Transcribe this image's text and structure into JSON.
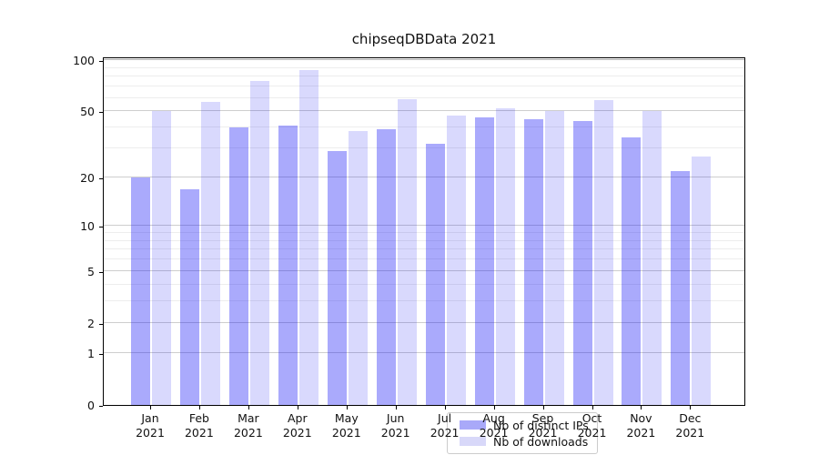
{
  "title": "chipseqDBData 2021",
  "chart_data": {
    "type": "bar",
    "title": "chipseqDBData 2021",
    "categories": [
      "Jan",
      "Feb",
      "Mar",
      "Apr",
      "May",
      "Jun",
      "Jul",
      "Aug",
      "Sep",
      "Oct",
      "Nov",
      "Dec"
    ],
    "category_year": "2021",
    "series": [
      {
        "name": "Nb of distinct IPs",
        "color": "#a9a9f9",
        "values": [
          20,
          17,
          40,
          41,
          29,
          39,
          32,
          46,
          45,
          44,
          35,
          22
        ]
      },
      {
        "name": "Nb of downloads",
        "color": "#d8d8f9",
        "values": [
          50,
          57,
          76,
          88,
          38,
          59,
          47,
          52,
          50,
          58,
          50,
          27
        ]
      }
    ],
    "xlabel": "",
    "ylabel": "",
    "y_scale": "log10(value+1)",
    "ylim": [
      0,
      105.3
    ],
    "y_major_ticks": [
      0,
      1,
      2,
      5,
      10,
      20,
      50,
      100
    ],
    "y_minor_gridlines": [
      3,
      4,
      6,
      7,
      8,
      9,
      30,
      40,
      60,
      70,
      80,
      90
    ],
    "grid": "on",
    "legend_position": "lower center (inside plot)"
  }
}
